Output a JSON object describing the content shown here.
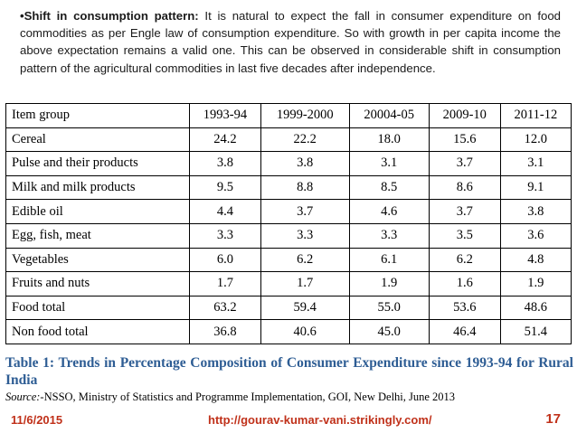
{
  "intro": {
    "bullet": "•",
    "heading": "Shift in consumption pattern:",
    "body": " It is natural to expect the fall in consumer expenditure on food commodities as per Engle law of consumption expenditure. So with growth in per capita income the above expectation remains a valid one. This can be observed in considerable shift in consumption pattern of the agricultural commodities in last five decades after independence."
  },
  "table": {
    "headers": [
      "Item group",
      "1993-94",
      "1999-2000",
      "20004-05",
      "2009-10",
      "2011-12"
    ],
    "rows": [
      [
        "Cereal",
        "24.2",
        "22.2",
        "18.0",
        "15.6",
        "12.0"
      ],
      [
        "Pulse and their products",
        "3.8",
        "3.8",
        "3.1",
        "3.7",
        "3.1"
      ],
      [
        "Milk and milk products",
        "9.5",
        "8.8",
        "8.5",
        "8.6",
        "9.1"
      ],
      [
        "Edible oil",
        "4.4",
        "3.7",
        "4.6",
        "3.7",
        "3.8"
      ],
      [
        "Egg, fish, meat",
        "3.3",
        "3.3",
        "3.3",
        "3.5",
        "3.6"
      ],
      [
        "Vegetables",
        "6.0",
        "6.2",
        "6.1",
        "6.2",
        "4.8"
      ],
      [
        "Fruits and nuts",
        "1.7",
        "1.7",
        "1.9",
        "1.6",
        "1.9"
      ],
      [
        "Food total",
        "63.2",
        "59.4",
        "55.0",
        "53.6",
        "48.6"
      ],
      [
        "Non food total",
        "36.8",
        "40.6",
        "45.0",
        "46.4",
        "51.4"
      ]
    ]
  },
  "caption": "Table 1: Trends in Percentage Composition of Consumer Expenditure since 1993-94 for Rural India",
  "source": {
    "label": "Source:",
    "text": "-NSSO, Ministry of Statistics and Programme Implementation, GOI, New Delhi, June 2013"
  },
  "footer": {
    "date": "11/6/2015",
    "url": "http://gourav-kumar-vani.strikingly.com/",
    "page": "17"
  },
  "colors": {
    "caption": "#2e5d94",
    "footer": "#c0311a"
  }
}
